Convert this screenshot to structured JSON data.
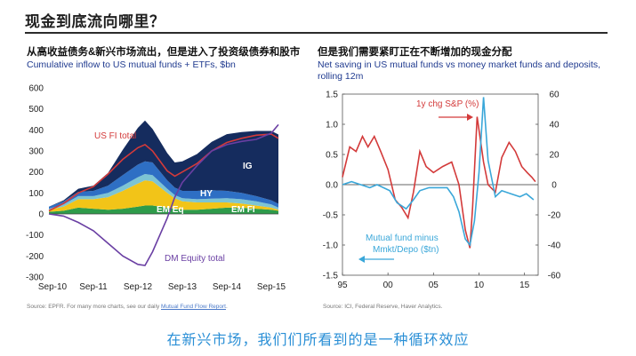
{
  "page": {
    "title": "现金到底流向哪里？",
    "bottom_caption": "在新兴市场，我们们所看到的是一种循环效应"
  },
  "left_panel": {
    "title": "从高收益债务&新兴市场流出，但是进入了投资级债券和股市",
    "subtitle": "Cumulative inflow to US mutual funds + ETFs, $bn",
    "source_prefix": "Source: EPFR. For many more charts, see our daily ",
    "source_link": "Mutual Fund Flow Report",
    "source_suffix": "."
  },
  "right_panel": {
    "title": "但是我们需要紧盯正在不断增加的现金分配",
    "subtitle_line1": "Net saving in US mutual funds vs money market funds and deposits,",
    "subtitle_line2": "rolling 12m",
    "source": "Source: ICI, Federal Reserve, Haver Analytics."
  },
  "chart_data": [
    {
      "type": "area",
      "title": "Cumulative inflow to US mutual funds + ETFs, $bn",
      "x_ticks": [
        "Sep-10",
        "Sep-11",
        "Sep-12",
        "Sep-13",
        "Sep-14",
        "Sep-15"
      ],
      "ylim": [
        -300,
        600
      ],
      "y_ticks": [
        -300,
        -200,
        -100,
        0,
        100,
        200,
        300,
        400,
        500,
        600
      ],
      "x": [
        2010.67,
        2011.0,
        2011.33,
        2011.67,
        2012.0,
        2012.33,
        2012.67,
        2012.83,
        2013.0,
        2013.33,
        2013.5,
        2013.67,
        2014.0,
        2014.33,
        2014.67,
        2015.0,
        2015.33,
        2015.67,
        2015.83
      ],
      "stacked_series": [
        {
          "name": "EM Eq",
          "color": "#2e9b4a",
          "values": [
            10,
            15,
            30,
            25,
            20,
            25,
            35,
            40,
            40,
            30,
            25,
            20,
            20,
            25,
            30,
            30,
            25,
            20,
            15
          ]
        },
        {
          "name": "",
          "color": "#f2c418",
          "values": [
            10,
            20,
            40,
            45,
            60,
            85,
            110,
            120,
            115,
            70,
            50,
            40,
            35,
            30,
            25,
            20,
            15,
            10,
            5
          ]
        },
        {
          "name": "EM FI",
          "color": "#7dc4d3",
          "values": [
            5,
            10,
            15,
            15,
            20,
            25,
            30,
            30,
            30,
            20,
            15,
            15,
            15,
            18,
            20,
            20,
            20,
            15,
            10
          ]
        },
        {
          "name": "HY",
          "color": "#2e6fc4",
          "values": [
            10,
            15,
            20,
            25,
            35,
            50,
            60,
            60,
            60,
            40,
            35,
            35,
            40,
            40,
            35,
            30,
            25,
            20,
            18
          ]
        },
        {
          "name": "IG",
          "color": "#152c5e",
          "values": [
            0,
            5,
            15,
            25,
            60,
            120,
            175,
            195,
            160,
            130,
            120,
            140,
            175,
            230,
            270,
            290,
            310,
            330,
            330
          ]
        }
      ],
      "line_series": [
        {
          "name": "US FI total",
          "color": "#d33a3a",
          "values": [
            15,
            50,
            100,
            130,
            190,
            260,
            315,
            330,
            300,
            205,
            180,
            200,
            240,
            300,
            340,
            360,
            375,
            380,
            360
          ]
        },
        {
          "name": "DM Equity total",
          "color": "#6a3fa3",
          "values": [
            0,
            -10,
            -40,
            -80,
            -140,
            -200,
            -240,
            -245,
            -180,
            -20,
            80,
            150,
            230,
            300,
            330,
            345,
            355,
            385,
            425
          ]
        }
      ],
      "labels": [
        "US FI total",
        "IG",
        "HY",
        "EM Eq",
        "EM FI",
        "DM Equity total"
      ]
    },
    {
      "type": "line",
      "title": "Net saving in US mutual funds vs money market funds and deposits, rolling 12m",
      "x_ticks": [
        "95",
        "00",
        "05",
        "10",
        "15"
      ],
      "xlim": [
        1995,
        2016.5
      ],
      "y_left": {
        "ylim": [
          -1.5,
          1.5
        ],
        "ticks": [
          "1.5",
          "1.0",
          "0.5",
          "0.0",
          "-0.5",
          "-1.0",
          "-1.5"
        ]
      },
      "y_right": {
        "ylim": [
          -60,
          60
        ],
        "ticks": [
          "60",
          "40",
          "20",
          "0",
          "-20",
          "-40",
          "-60"
        ]
      },
      "series": [
        {
          "name": "1y chg S&P (%)",
          "axis": "right",
          "color": "#d33a3a",
          "x": [
            1995,
            1995.8,
            1996.5,
            1997.2,
            1997.8,
            1998.5,
            1999.2,
            2000,
            2000.8,
            2001.5,
            2002.2,
            2002.8,
            2003.5,
            2004.2,
            2005,
            2006,
            2007,
            2007.8,
            2008.5,
            2009,
            2009.3,
            2009.8,
            2010.5,
            2011,
            2011.8,
            2012.5,
            2013.3,
            2014,
            2014.7,
            2015.3,
            2015.8,
            2016.2
          ],
          "values": [
            5,
            25,
            22,
            32,
            25,
            32,
            22,
            10,
            -10,
            -15,
            -22,
            -5,
            22,
            12,
            8,
            12,
            15,
            0,
            -30,
            -42,
            -15,
            45,
            15,
            0,
            -5,
            18,
            28,
            22,
            12,
            8,
            5,
            2
          ]
        },
        {
          "name": "Mutual fund minus Mmkt/Depo ($tn)",
          "axis": "left",
          "color": "#3aa7d9",
          "x": [
            1995,
            1996,
            1997,
            1998,
            1998.8,
            1999.5,
            2000.2,
            2001,
            2001.5,
            2002,
            2002.8,
            2003.5,
            2004.5,
            2005.5,
            2006.5,
            2007.2,
            2007.8,
            2008.5,
            2009,
            2009.5,
            2010,
            2010.5,
            2011,
            2011.8,
            2012.5,
            2013.5,
            2014.5,
            2015.2,
            2016
          ],
          "values": [
            0.0,
            0.05,
            0.0,
            -0.05,
            0.0,
            -0.05,
            -0.1,
            -0.3,
            -0.35,
            -0.4,
            -0.25,
            -0.1,
            -0.05,
            -0.05,
            -0.05,
            -0.2,
            -0.45,
            -0.9,
            -1.0,
            -0.6,
            0.2,
            1.45,
            0.4,
            -0.2,
            -0.1,
            -0.15,
            -0.2,
            -0.15,
            -0.25
          ]
        }
      ]
    }
  ]
}
